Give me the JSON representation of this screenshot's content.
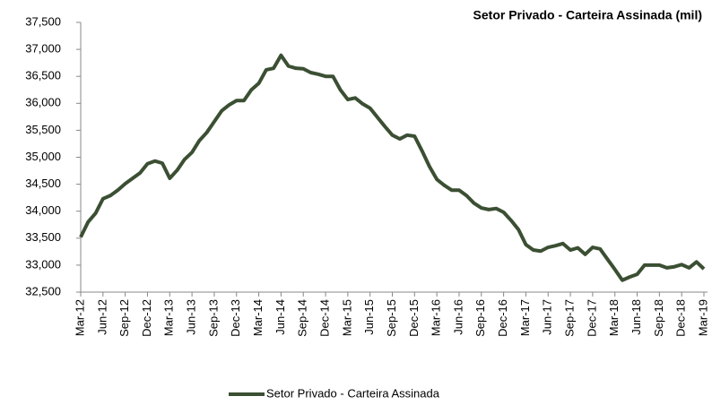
{
  "chart_data": {
    "type": "line",
    "title": "Setor Privado - Carteira Assinada (mil)",
    "categories": [
      "Mar-12",
      null,
      null,
      "Jun-12",
      null,
      null,
      "Sep-12",
      null,
      null,
      "Dec-12",
      null,
      null,
      "Mar-13",
      null,
      null,
      "Jun-13",
      null,
      null,
      "Sep-13",
      null,
      null,
      "Dec-13",
      null,
      null,
      "Mar-14",
      null,
      null,
      "Jun-14",
      null,
      null,
      "Sep-14",
      null,
      null,
      "Dec-14",
      null,
      null,
      "Mar-15",
      null,
      null,
      "Jun-15",
      null,
      null,
      "Sep-15",
      null,
      null,
      "Dec-15",
      null,
      null,
      "Mar-16",
      null,
      null,
      "Jun-16",
      null,
      null,
      "Sep-16",
      null,
      null,
      "Dec-16",
      null,
      null,
      "Mar-17",
      null,
      null,
      "Jun-17",
      null,
      null,
      "Sep-17",
      null,
      null,
      "Dec-17",
      null,
      null,
      "Mar-18",
      null,
      null,
      "Jun-18",
      null,
      null,
      "Sep-18",
      null,
      null,
      "Dec-18",
      null,
      null,
      "Mar-19"
    ],
    "series": [
      {
        "name": "Setor Privado - Carteira Assinada",
        "color": "#3b4f33",
        "values": [
          33520,
          33800,
          33960,
          34230,
          34290,
          34390,
          34510,
          34610,
          34710,
          34880,
          34930,
          34890,
          34610,
          34760,
          34960,
          35090,
          35310,
          35460,
          35660,
          35860,
          35970,
          36050,
          36050,
          36250,
          36370,
          36620,
          36650,
          36890,
          36690,
          36650,
          36640,
          36570,
          36540,
          36500,
          36500,
          36250,
          36070,
          36100,
          35990,
          35910,
          35740,
          35570,
          35410,
          35340,
          35410,
          35390,
          35120,
          34830,
          34590,
          34480,
          34390,
          34390,
          34290,
          34150,
          34060,
          34030,
          34050,
          33980,
          33830,
          33660,
          33380,
          33280,
          33260,
          33330,
          33360,
          33400,
          33280,
          33320,
          33200,
          33330,
          33300,
          33110,
          32920,
          32720,
          32780,
          32830,
          33000,
          33000,
          33000,
          32950,
          32970,
          33010,
          32950,
          33060,
          32930
        ]
      }
    ],
    "ylim": [
      32500,
      37500
    ],
    "yticks": [
      {
        "value": 32500,
        "label": "32,500"
      },
      {
        "value": 33000,
        "label": "33,000"
      },
      {
        "value": 33500,
        "label": "33,500"
      },
      {
        "value": 34000,
        "label": "34,000"
      },
      {
        "value": 34500,
        "label": "34,500"
      },
      {
        "value": 35000,
        "label": "35,000"
      },
      {
        "value": 35500,
        "label": "35,500"
      },
      {
        "value": 36000,
        "label": "36,000"
      },
      {
        "value": 36500,
        "label": "36,500"
      },
      {
        "value": 37000,
        "label": "37,000"
      },
      {
        "value": 37500,
        "label": "37,500"
      }
    ],
    "grid": false,
    "legend": "bottom"
  }
}
